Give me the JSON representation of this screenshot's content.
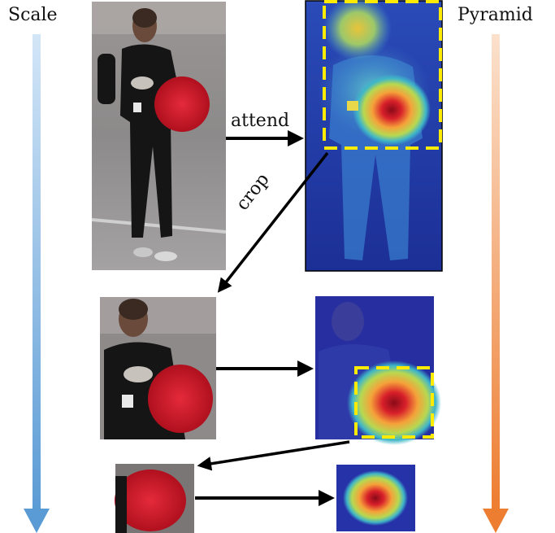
{
  "labels": {
    "left_axis": "Scale",
    "right_axis": "Pyramid",
    "attend": "attend",
    "crop": "crop"
  },
  "colors": {
    "scale_arrow_top": "#d3e6f7",
    "scale_arrow_bottom": "#5b9bd5",
    "pyramid_arrow_top": "#fbe1cd",
    "pyramid_arrow_bottom": "#ed7d31",
    "crop_box": "#ffeb00",
    "arrow": "#000000"
  },
  "panels": {
    "level1_image": "pedestrian-photo",
    "level1_map": "attention-heatmap",
    "level2_image": "upper-body-crop-photo",
    "level2_map": "upper-body-attention-heatmap",
    "level3_image": "backpack-crop-photo",
    "level3_map": "backpack-attention-heatmap"
  }
}
